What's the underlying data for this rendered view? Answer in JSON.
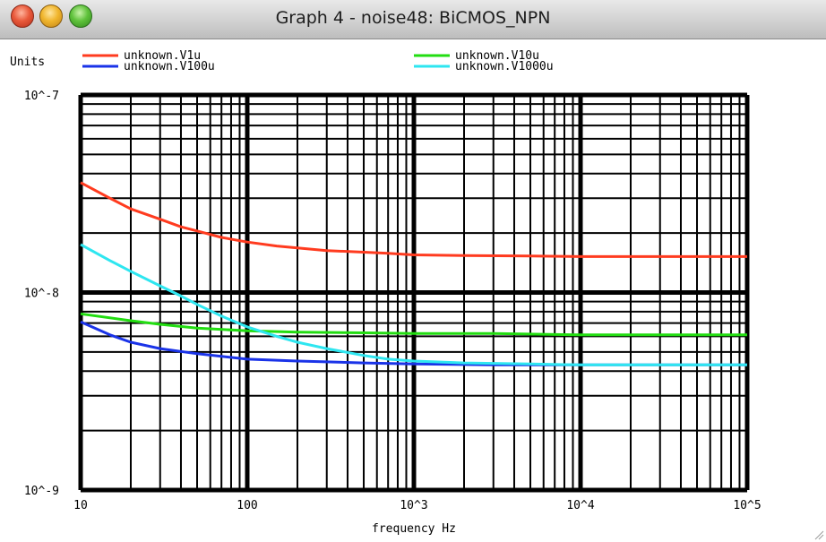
{
  "window": {
    "title": "Graph 4 - noise48: BiCMOS_NPN"
  },
  "colors": {
    "titlebar_top": "#e9e9e9",
    "titlebar_bottom": "#bdbdbd",
    "close": "#e9593a",
    "minimize": "#f0b52c",
    "zoom": "#5fc23b"
  },
  "chart_data": {
    "type": "line",
    "xlabel": "frequency Hz",
    "ylabel": "Units",
    "xscale": "log",
    "yscale": "log",
    "xlim": [
      10,
      100000
    ],
    "ylim": [
      1e-09,
      1e-07
    ],
    "grid": true,
    "legend_position": "top",
    "x_tick_labels": [
      "10",
      "100",
      "10^3",
      "10^4",
      "10^5"
    ],
    "y_tick_labels": [
      "10^-9",
      "10^-8",
      "10^-7"
    ],
    "series": [
      {
        "name": "unknown.V1u",
        "color": "#ff3b1f",
        "x": [
          10,
          15,
          20,
          30,
          40,
          50,
          70,
          100,
          150,
          200,
          300,
          500,
          700,
          1000,
          2000,
          5000,
          10000,
          100000
        ],
        "y": [
          3.6e-08,
          3e-08,
          2.65e-08,
          2.35e-08,
          2.15e-08,
          2.05e-08,
          1.9e-08,
          1.8e-08,
          1.72e-08,
          1.68e-08,
          1.63e-08,
          1.6e-08,
          1.58e-08,
          1.55e-08,
          1.54e-08,
          1.53e-08,
          1.52e-08,
          1.52e-08
        ]
      },
      {
        "name": "unknown.V10u",
        "color": "#22dd11",
        "x": [
          10,
          20,
          30,
          50,
          100,
          200,
          500,
          1000,
          3000,
          10000,
          100000
        ],
        "y": [
          7.8e-09,
          7.2e-09,
          6.9e-09,
          6.6e-09,
          6.4e-09,
          6.3e-09,
          6.25e-09,
          6.2e-09,
          6.2e-09,
          6.1e-09,
          6.1e-09
        ]
      },
      {
        "name": "unknown.V100u",
        "color": "#1a33e8",
        "x": [
          10,
          15,
          20,
          30,
          50,
          100,
          200,
          500,
          1000,
          3000,
          10000,
          100000
        ],
        "y": [
          7.1e-09,
          6.1e-09,
          5.6e-09,
          5.2e-09,
          4.9e-09,
          4.6e-09,
          4.5e-09,
          4.4e-09,
          4.35e-09,
          4.3e-09,
          4.3e-09,
          4.3e-09
        ]
      },
      {
        "name": "unknown.V1000u",
        "color": "#2ee6f0",
        "x": [
          10,
          15,
          20,
          30,
          40,
          50,
          70,
          100,
          150,
          200,
          300,
          500,
          700,
          1000,
          2000,
          5000,
          10000,
          100000
        ],
        "y": [
          1.75e-08,
          1.45e-08,
          1.28e-08,
          1.08e-08,
          9.6e-09,
          8.7e-09,
          7.6e-09,
          6.7e-09,
          6e-09,
          5.6e-09,
          5.2e-09,
          4.8e-09,
          4.6e-09,
          4.5e-09,
          4.4e-09,
          4.35e-09,
          4.3e-09,
          4.3e-09
        ]
      }
    ]
  }
}
